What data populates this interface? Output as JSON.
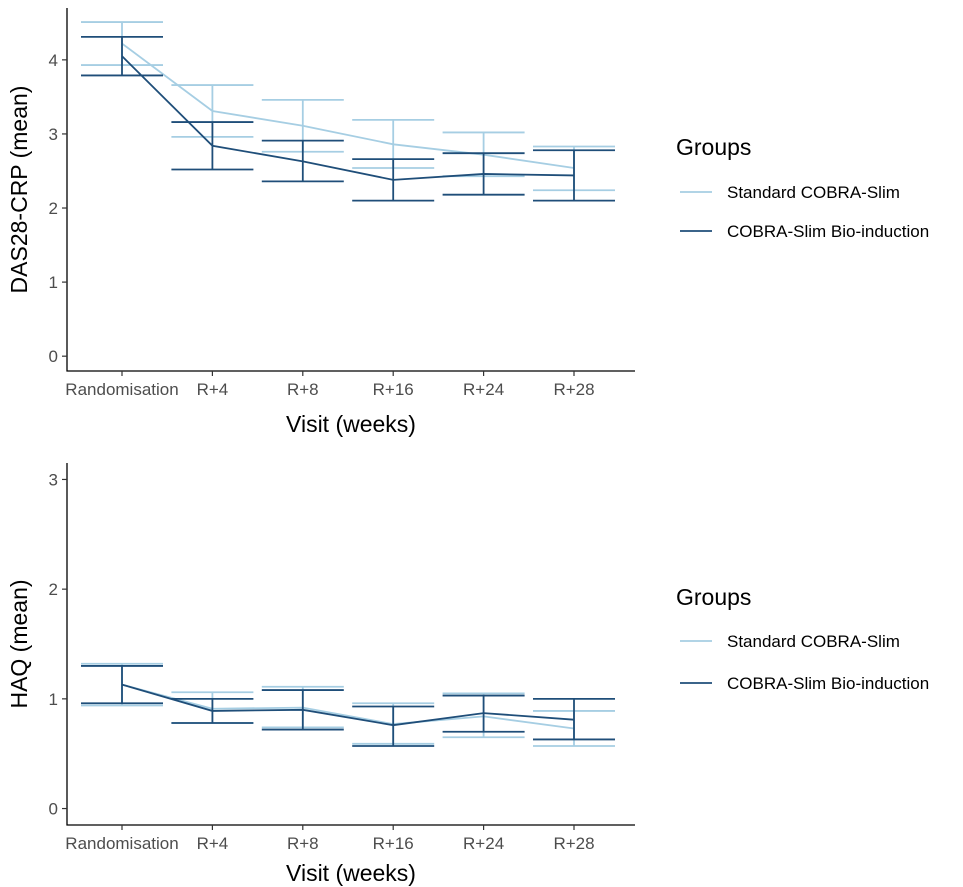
{
  "chart_data": [
    {
      "type": "line",
      "ylabel": "DAS28-CRP (mean)",
      "xlabel": "Visit (weeks)",
      "categories": [
        "Randomisation",
        "R+4",
        "R+8",
        "R+16",
        "R+24",
        "R+28"
      ],
      "ylim": [
        -0.2,
        4.7
      ],
      "yticks": [
        0,
        1,
        2,
        3,
        4
      ],
      "legend": {
        "title": "Groups",
        "position": "right"
      },
      "grid": false,
      "series": [
        {
          "name": "Standard COBRA-Slim",
          "color": "#a6cee3",
          "values": [
            4.22,
            3.31,
            3.11,
            2.86,
            2.72,
            2.54
          ],
          "lower": [
            3.93,
            2.96,
            2.76,
            2.54,
            2.43,
            2.24
          ],
          "upper": [
            4.51,
            3.66,
            3.46,
            3.19,
            3.02,
            2.83
          ]
        },
        {
          "name": "COBRA-Slim Bio-induction",
          "color": "#1f4e79",
          "values": [
            4.05,
            2.84,
            2.63,
            2.38,
            2.46,
            2.44
          ],
          "lower": [
            3.79,
            2.52,
            2.36,
            2.1,
            2.18,
            2.1
          ],
          "upper": [
            4.31,
            3.16,
            2.91,
            2.66,
            2.74,
            2.78
          ]
        }
      ]
    },
    {
      "type": "line",
      "ylabel": "HAQ (mean)",
      "xlabel": "Visit (weeks)",
      "categories": [
        "Randomisation",
        "R+4",
        "R+8",
        "R+16",
        "R+24",
        "R+28"
      ],
      "ylim": [
        -0.15,
        3.15
      ],
      "yticks": [
        0,
        1,
        2,
        3
      ],
      "legend": {
        "title": "Groups",
        "position": "right"
      },
      "grid": false,
      "series": [
        {
          "name": "Standard COBRA-Slim",
          "color": "#a6cee3",
          "values": [
            1.13,
            0.91,
            0.92,
            0.77,
            0.84,
            0.73
          ],
          "lower": [
            0.94,
            0.78,
            0.74,
            0.59,
            0.65,
            0.57
          ],
          "upper": [
            1.32,
            1.06,
            1.11,
            0.96,
            1.05,
            0.89
          ]
        },
        {
          "name": "COBRA-Slim Bio-induction",
          "color": "#1f4e79",
          "values": [
            1.13,
            0.89,
            0.9,
            0.76,
            0.87,
            0.81
          ],
          "lower": [
            0.96,
            0.78,
            0.72,
            0.57,
            0.7,
            0.63
          ],
          "upper": [
            1.3,
            1.0,
            1.08,
            0.93,
            1.03,
            1.0
          ]
        }
      ]
    }
  ]
}
